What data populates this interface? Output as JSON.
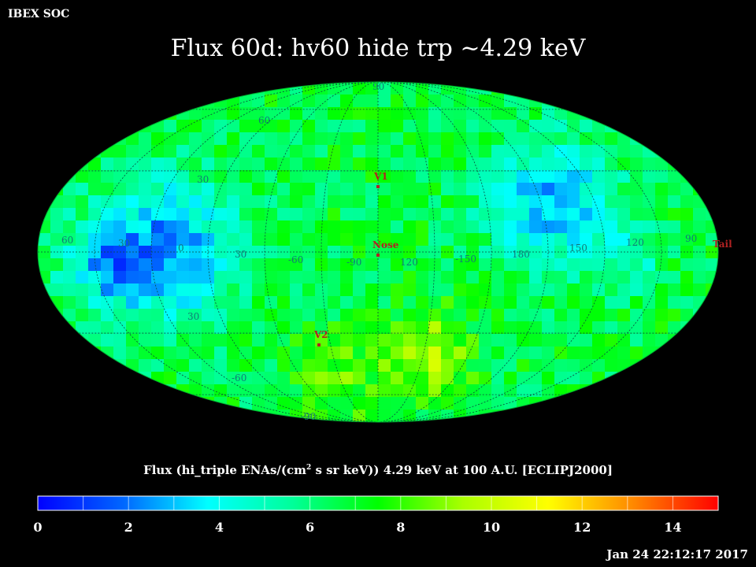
{
  "header": {
    "organization": "IBEX SOC",
    "title": "Flux   60d: hv60 hide trp ~4.29 keV"
  },
  "map": {
    "projection": "Mollweide",
    "frame": "ECLIPJ2000",
    "grid_labels": [
      "90",
      "60",
      "30",
      "60",
      "30",
      "0",
      "30",
      "-60",
      "-90",
      "120",
      "-150",
      "180",
      "150",
      "120",
      "90",
      "30",
      "-60",
      "-90"
    ],
    "markers": [
      {
        "label": "V1"
      },
      {
        "label": "Nose"
      },
      {
        "label": "V2"
      },
      {
        "label": "Tail"
      }
    ]
  },
  "colorbar": {
    "title_prefix": "Flux (hi_triple ENAs/(cm",
    "title_sup": "2",
    "title_suffix": " s sr keV))  4.29 keV at 100 A.U. [ECLIPJ2000]",
    "min": 0,
    "max": 15,
    "ticks": [
      "0",
      "2",
      "4",
      "6",
      "8",
      "10",
      "12",
      "14"
    ],
    "colors": [
      "#0000ff",
      "#0066ff",
      "#00ffff",
      "#00ff99",
      "#00ff00",
      "#aaff00",
      "#ffff00",
      "#ff8800",
      "#ff0000"
    ]
  },
  "footer": {
    "timestamp": "Jan 24 22:12:17 2017"
  }
}
